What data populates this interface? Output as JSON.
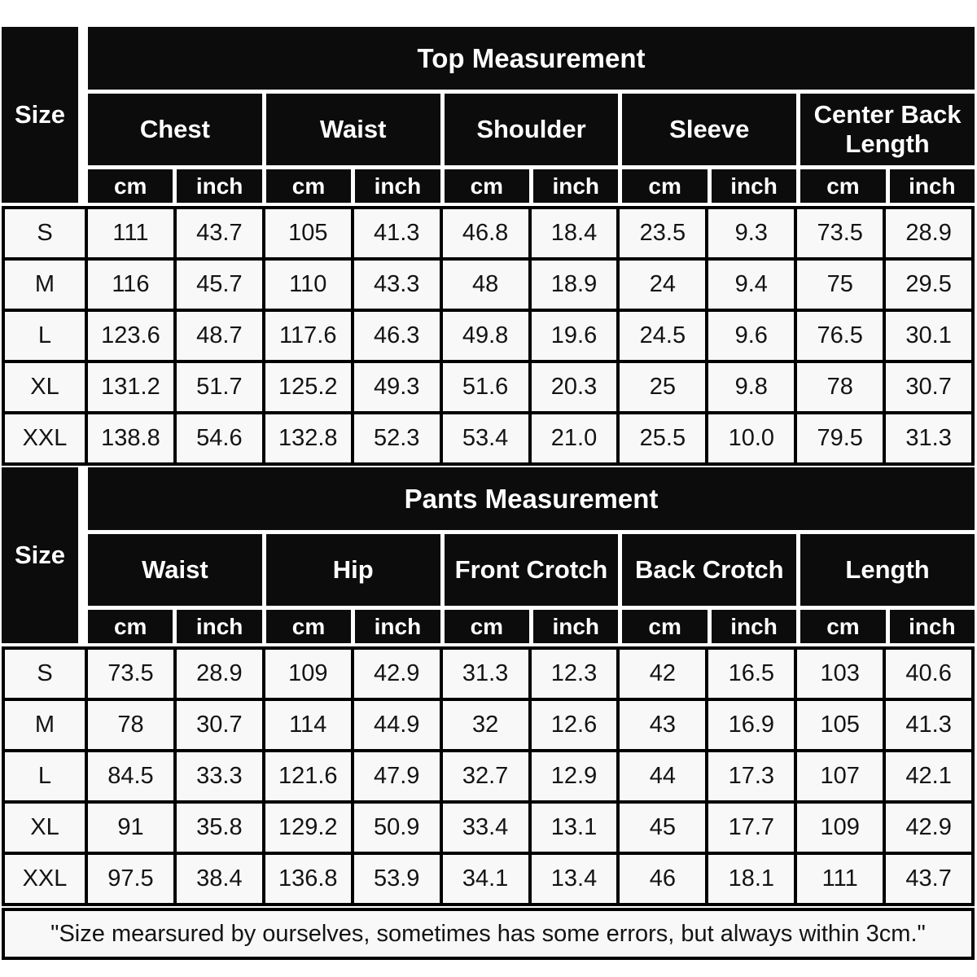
{
  "colors": {
    "page_bg": "#ffffff",
    "header_bg": "#0c0c0c",
    "header_text": "#ffffff",
    "cell_bg": "#f8f8f8",
    "cell_text": "#141414",
    "border": "#000000"
  },
  "note": "\"Size mearsured by ourselves, sometimes has some errors, but always within 3cm.\"",
  "chart_data": [
    {
      "type": "table",
      "title": "Top Measurement",
      "corner_label": "Size",
      "group_headers": [
        "Chest",
        "Waist",
        "Shoulder",
        "Sleeve",
        "Center Back Length"
      ],
      "unit_headers": [
        "cm",
        "inch",
        "cm",
        "inch",
        "cm",
        "inch",
        "cm",
        "inch",
        "cm",
        "inch"
      ],
      "rows": [
        [
          "S",
          "111",
          "43.7",
          "105",
          "41.3",
          "46.8",
          "18.4",
          "23.5",
          "9.3",
          "73.5",
          "28.9"
        ],
        [
          "M",
          "116",
          "45.7",
          "110",
          "43.3",
          "48",
          "18.9",
          "24",
          "9.4",
          "75",
          "29.5"
        ],
        [
          "L",
          "123.6",
          "48.7",
          "117.6",
          "46.3",
          "49.8",
          "19.6",
          "24.5",
          "9.6",
          "76.5",
          "30.1"
        ],
        [
          "XL",
          "131.2",
          "51.7",
          "125.2",
          "49.3",
          "51.6",
          "20.3",
          "25",
          "9.8",
          "78",
          "30.7"
        ],
        [
          "XXL",
          "138.8",
          "54.6",
          "132.8",
          "52.3",
          "53.4",
          "21.0",
          "25.5",
          "10.0",
          "79.5",
          "31.3"
        ]
      ]
    },
    {
      "type": "table",
      "title": "Pants Measurement",
      "corner_label": "Size",
      "group_headers": [
        "Waist",
        "Hip",
        "Front Crotch",
        "Back Crotch",
        "Length"
      ],
      "unit_headers": [
        "cm",
        "inch",
        "cm",
        "inch",
        "cm",
        "inch",
        "cm",
        "inch",
        "cm",
        "inch"
      ],
      "rows": [
        [
          "S",
          "73.5",
          "28.9",
          "109",
          "42.9",
          "31.3",
          "12.3",
          "42",
          "16.5",
          "103",
          "40.6"
        ],
        [
          "M",
          "78",
          "30.7",
          "114",
          "44.9",
          "32",
          "12.6",
          "43",
          "16.9",
          "105",
          "41.3"
        ],
        [
          "L",
          "84.5",
          "33.3",
          "121.6",
          "47.9",
          "32.7",
          "12.9",
          "44",
          "17.3",
          "107",
          "42.1"
        ],
        [
          "XL",
          "91",
          "35.8",
          "129.2",
          "50.9",
          "33.4",
          "13.1",
          "45",
          "17.7",
          "109",
          "42.9"
        ],
        [
          "XXL",
          "97.5",
          "38.4",
          "136.8",
          "53.9",
          "34.1",
          "13.4",
          "46",
          "18.1",
          "111",
          "43.7"
        ]
      ]
    }
  ]
}
